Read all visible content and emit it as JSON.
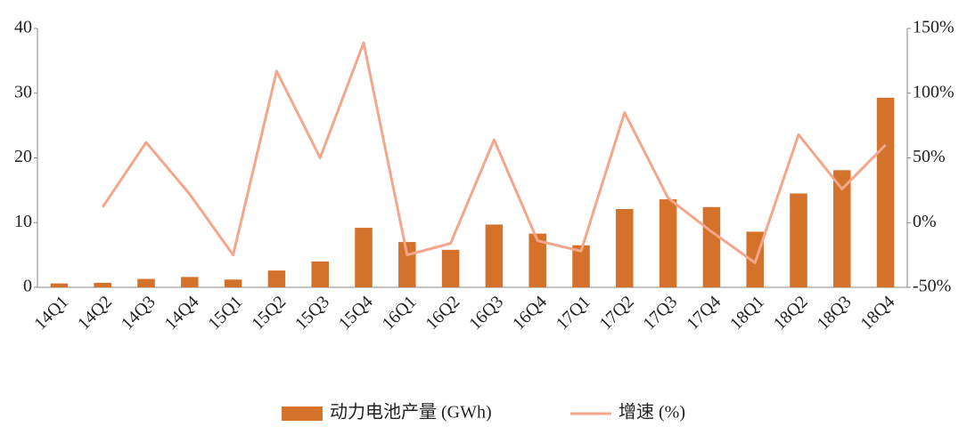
{
  "chart_data": {
    "type": "bar_line",
    "categories": [
      "14Q1",
      "14Q2",
      "14Q3",
      "14Q4",
      "15Q1",
      "15Q2",
      "15Q3",
      "15Q4",
      "16Q1",
      "16Q2",
      "16Q3",
      "16Q4",
      "17Q1",
      "17Q2",
      "17Q3",
      "17Q4",
      "18Q1",
      "18Q2",
      "18Q3",
      "18Q4"
    ],
    "series": [
      {
        "name": "动力电池产量 (GWh)",
        "color": "#d4712b",
        "type": "bar",
        "values": [
          0.6,
          0.7,
          1.3,
          1.6,
          1.2,
          2.6,
          4.0,
          9.2,
          7.0,
          5.8,
          9.7,
          8.3,
          6.5,
          12.1,
          13.6,
          12.4,
          8.6,
          14.5,
          18.1,
          29.3
        ]
      },
      {
        "name": "增速 (%)",
        "color": "#f4a68c",
        "type": "line",
        "axis": "y2",
        "values": [
          null,
          12,
          62,
          22,
          -25,
          117,
          50,
          139,
          -25,
          -16,
          64,
          -14,
          -22,
          85,
          19,
          -7,
          -31,
          68,
          26,
          60
        ]
      }
    ],
    "ylim": [
      0,
      40
    ],
    "yticks": [
      0,
      10,
      20,
      30,
      40
    ],
    "y2lim": [
      -50,
      150
    ],
    "y2ticks": [
      {
        "value": -50,
        "label": "-50%"
      },
      {
        "value": 0,
        "label": "0%"
      },
      {
        "value": 50,
        "label": "50%"
      },
      {
        "value": 100,
        "label": "100%"
      },
      {
        "value": 150,
        "label": "150%"
      }
    ],
    "legend": "bottom"
  }
}
